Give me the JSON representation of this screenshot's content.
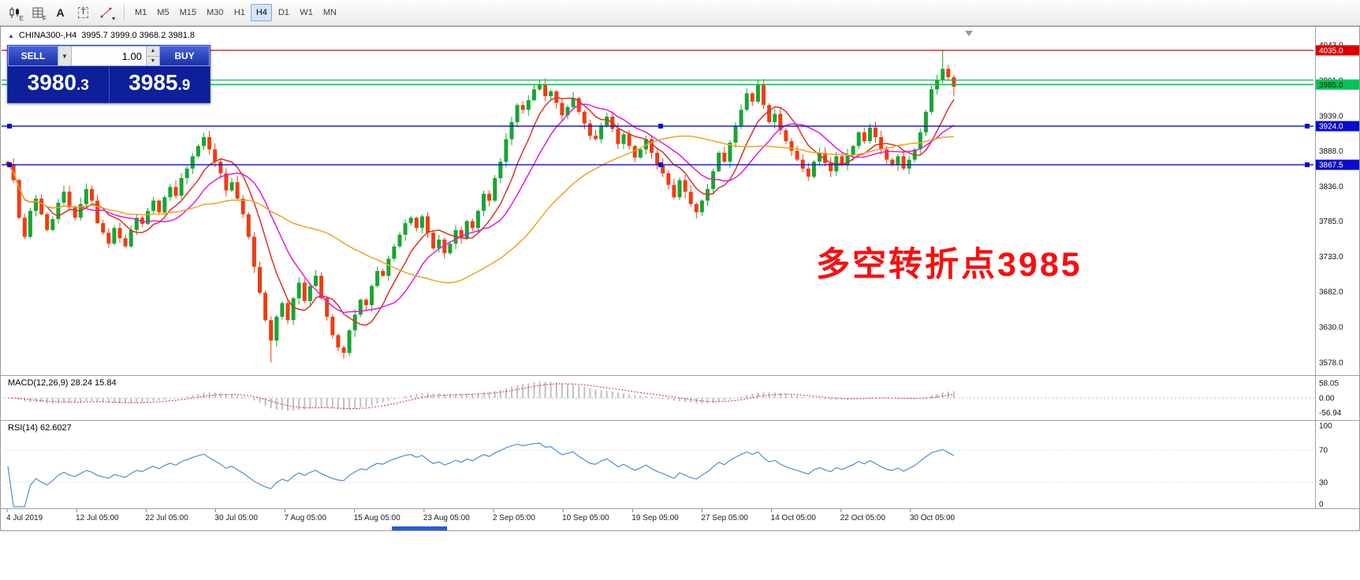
{
  "toolbar": {
    "tools": [
      {
        "name": "candlestick-chart",
        "badge": "E"
      },
      {
        "name": "indicator-grid",
        "badge": "F"
      },
      {
        "name": "text-label",
        "glyph": "A"
      },
      {
        "name": "text-box",
        "glyph": "T"
      },
      {
        "name": "line-studies",
        "badge": "▾"
      }
    ],
    "timeframes": [
      "M1",
      "M5",
      "M15",
      "M30",
      "H1",
      "H4",
      "D1",
      "W1",
      "MN"
    ],
    "active": "H4"
  },
  "chart_header": {
    "collapse": "▲",
    "symbol_tf": "CHINA300-,H4",
    "ohlc": "3995.7 3999.0 3968.2 3981.8"
  },
  "trade_panel": {
    "sell_label": "SELL",
    "buy_label": "BUY",
    "volume": "1.00",
    "sell_price": {
      "main": "3980",
      "frac": ".3"
    },
    "buy_price": {
      "main": "3985",
      "frac": ".9"
    }
  },
  "annotation": {
    "text": "多空转折点3985",
    "color": "#fb0d0d"
  },
  "macd_panel": {
    "label": "MACD(12,26,9) 28.24 15.84"
  },
  "rsi_panel": {
    "label": "RSI(14) 62.6027"
  },
  "time_axis": [
    "4 Jul 2019",
    "12 Jul 05:00",
    "22 Jul 05:00",
    "30 Jul 05:00",
    "7 Aug 05:00",
    "15 Aug 05:00",
    "23 Aug 05:00",
    "2 Sep 05:00",
    "10 Sep 05:00",
    "19 Sep 05:00",
    "27 Sep 05:00",
    "14 Oct 05:00",
    "22 Oct 05:00",
    "30 Oct 05:00"
  ],
  "chart_data": {
    "type": "candlestick",
    "symbol": "CHINA300-",
    "timeframe": "H4",
    "current_bar": {
      "open": 3995.7,
      "high": 3999.0,
      "low": 3968.2,
      "close": 3981.8
    },
    "bid": 3980.3,
    "ask": 3985.9,
    "y_axis": {
      "ticks": [
        4043.0,
        3991.0,
        3939.0,
        3888.0,
        3836.0,
        3785.0,
        3733.0,
        3682.0,
        3630.0,
        3578.0
      ]
    },
    "levels": [
      {
        "value": 4035.0,
        "label": "4035.0",
        "color": "#dd0000",
        "width": 1.2,
        "handles": false,
        "label_text": "#ffffff"
      },
      {
        "value": 3991.5,
        "label": "",
        "color": "#00c455",
        "width": 1.2,
        "handles": false
      },
      {
        "value": 3985.0,
        "label": "3985.0",
        "color": "#00c455",
        "width": 1.6,
        "handles": false,
        "label_text": "#00220e"
      },
      {
        "value": 3924.0,
        "label": "3924.0",
        "color": "#0b0bcc",
        "width": 1.4,
        "handles": true,
        "label_text": "#ffffff"
      },
      {
        "value": 3867.5,
        "label": "3867.5",
        "color": "#0b0bcc",
        "width": 1.4,
        "handles": true,
        "label_text": "#ffffff"
      }
    ],
    "candles": {
      "first_open": 3872,
      "closes": [
        3868,
        3845,
        3790,
        3762,
        3800,
        3818,
        3795,
        3772,
        3788,
        3812,
        3828,
        3805,
        3790,
        3810,
        3832,
        3815,
        3782,
        3768,
        3752,
        3775,
        3760,
        3748,
        3772,
        3790,
        3781,
        3800,
        3815,
        3798,
        3820,
        3835,
        3822,
        3848,
        3862,
        3880,
        3895,
        3908,
        3890,
        3872,
        3855,
        3830,
        3842,
        3818,
        3795,
        3762,
        3718,
        3680,
        3640,
        3610,
        3645,
        3665,
        3640,
        3672,
        3695,
        3668,
        3690,
        3705,
        3672,
        3645,
        3618,
        3600,
        3592,
        3625,
        3648,
        3670,
        3662,
        3690,
        3712,
        3705,
        3730,
        3748,
        3765,
        3782,
        3790,
        3775,
        3792,
        3768,
        3745,
        3758,
        3738,
        3752,
        3772,
        3760,
        3785,
        3775,
        3800,
        3825,
        3815,
        3848,
        3872,
        3905,
        3930,
        3955,
        3948,
        3962,
        3978,
        3985,
        3968,
        3975,
        3958,
        3940,
        3952,
        3965,
        3945,
        3928,
        3910,
        3905,
        3925,
        3938,
        3920,
        3898,
        3912,
        3895,
        3878,
        3890,
        3905,
        3885,
        3868,
        3855,
        3838,
        3820,
        3845,
        3828,
        3810,
        3798,
        3815,
        3832,
        3858,
        3885,
        3872,
        3900,
        3925,
        3948,
        3972,
        3960,
        3985,
        3955,
        3930,
        3942,
        3918,
        3902,
        3888,
        3875,
        3862,
        3850,
        3872,
        3885,
        3870,
        3858,
        3880,
        3868,
        3882,
        3895,
        3915,
        3902,
        3922,
        3908,
        3890,
        3875,
        3868,
        3880,
        3862,
        3875,
        3890,
        3915,
        3945,
        3978,
        3992,
        4008,
        3995.7,
        3981.8
      ],
      "overrides": {
        "47": {
          "low": 3578
        },
        "167": {
          "high": 4035
        },
        "169": {
          "high": 3999.0,
          "low": 3968.2
        }
      }
    },
    "moving_averages": [
      {
        "name": "fast",
        "color": "#e03020",
        "period": 8
      },
      {
        "name": "medium",
        "color": "#e619dc",
        "period": 14
      },
      {
        "name": "slow",
        "color": "#eea41e",
        "period": 36
      }
    ],
    "macd": {
      "fast": 12,
      "slow": 26,
      "signal": 9,
      "current_macd": 28.24,
      "current_signal": 15.84,
      "axis": [
        58.05,
        0.0,
        -56.94
      ]
    },
    "rsi": {
      "period": 14,
      "current": 62.6027,
      "levels": [
        70,
        30
      ],
      "axis": [
        100,
        70,
        30,
        0
      ]
    }
  }
}
